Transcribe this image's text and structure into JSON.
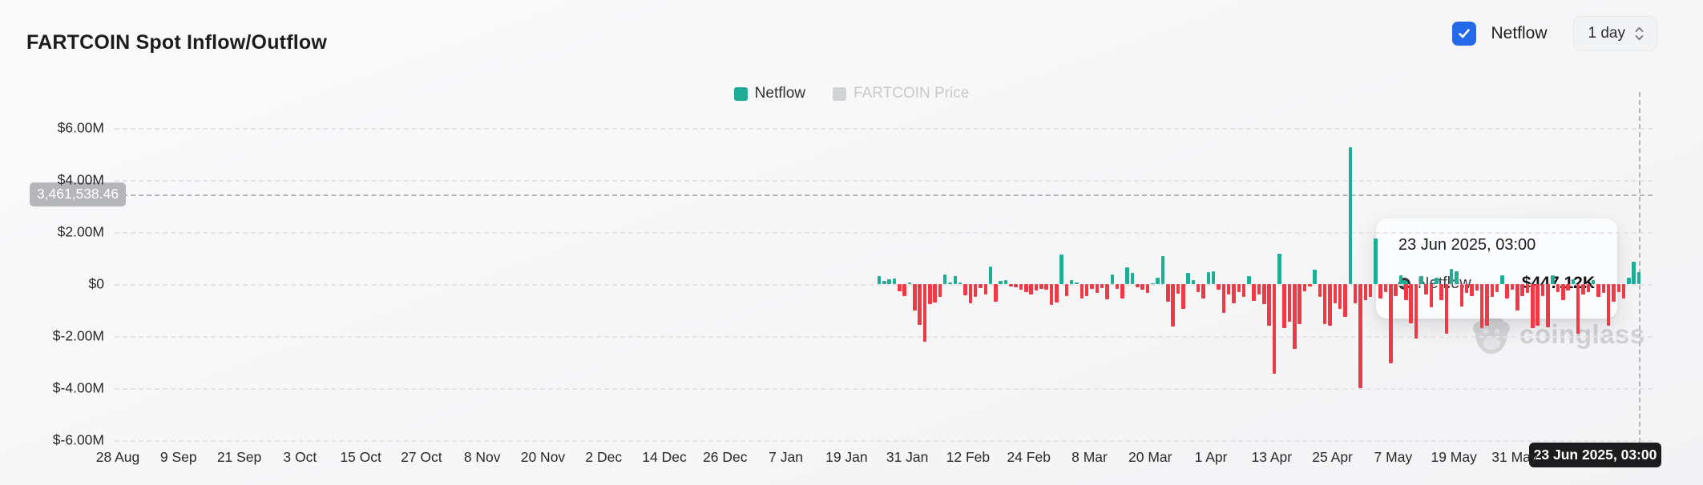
{
  "header": {
    "title": "FARTCOIN Spot Inflow/Outflow",
    "netflow_toggle": {
      "label": "Netflow",
      "checked": true
    },
    "interval_selector": {
      "value": "1 day"
    }
  },
  "legend": [
    {
      "label": "Netflow",
      "active": true
    },
    {
      "label": "FARTCOIN Price",
      "active": false
    }
  ],
  "colors": {
    "positive": "#21ac96",
    "negative": "#ee3a47",
    "accent_blue": "#2569eb",
    "legend_inactive_swatch": "#d2d3d6"
  },
  "crosshair": {
    "y_axis_label": "3,461,538.46",
    "x_axis_label": "23 Jun 2025, 03:00"
  },
  "tooltip": {
    "title": "23 Jun 2025, 03:00",
    "series": "Netflow",
    "value": "$447.12K"
  },
  "watermark": {
    "text": "coinglass"
  },
  "chart_data": {
    "type": "bar",
    "title": "FARTCOIN Spot Inflow/Outflow",
    "series_name": "Netflow",
    "unit": "USD millions",
    "frequency": "daily",
    "start_date": "24 Jan 2025",
    "end_date": "23 Jun 2025",
    "ylim": [
      -6,
      6
    ],
    "grid": true,
    "legend_position": "top-center",
    "y_ticks": [
      "$6.00M",
      "$4.00M",
      "$2.00M",
      "$0",
      "$-2.00M",
      "$-4.00M",
      "$-6.00M"
    ],
    "y_tick_values": [
      6,
      4,
      2,
      0,
      -2,
      -4,
      -6
    ],
    "x_tick_labels": [
      "28 Aug",
      "9 Sep",
      "21 Sep",
      "3 Oct",
      "15 Oct",
      "27 Oct",
      "8 Nov",
      "20 Nov",
      "2 Dec",
      "14 Dec",
      "26 Dec",
      "7 Jan",
      "19 Jan",
      "31 Jan",
      "12 Feb",
      "24 Feb",
      "8 Mar",
      "20 Mar",
      "1 Apr",
      "13 Apr",
      "25 Apr",
      "7 May",
      "19 May",
      "31 May"
    ],
    "hovered_point": {
      "date": "23 Jun 2025, 03:00",
      "value_label": "$447.12K",
      "value_m": 0.447
    },
    "crosshair_y_value_m": 3.46153846,
    "values": [
      0.31,
      0.13,
      0.2,
      0.23,
      -0.26,
      -0.46,
      0.05,
      -1.02,
      -1.57,
      -2.2,
      -0.77,
      -0.72,
      -0.48,
      0.36,
      0.05,
      0.3,
      0.06,
      -0.43,
      -0.75,
      -0.5,
      -0.15,
      -0.4,
      0.69,
      -0.69,
      0.13,
      0.15,
      -0.1,
      -0.13,
      -0.2,
      -0.3,
      -0.4,
      -0.23,
      -0.18,
      -0.2,
      -0.8,
      -0.7,
      1.14,
      -0.45,
      0.15,
      0.05,
      -0.55,
      -0.47,
      -0.17,
      -0.33,
      -0.15,
      -0.58,
      0.38,
      -0.17,
      -0.55,
      0.66,
      0.44,
      -0.12,
      -0.2,
      -0.33,
      0.04,
      0.26,
      1.08,
      -0.67,
      -1.63,
      -0.36,
      -0.95,
      0.42,
      0.15,
      -0.3,
      -0.55,
      0.45,
      0.5,
      -0.2,
      -1.1,
      -0.4,
      -0.75,
      -0.3,
      -0.5,
      0.3,
      -0.65,
      -0.4,
      -0.77,
      -1.6,
      -3.44,
      1.16,
      -1.7,
      -1.44,
      -2.5,
      -1.55,
      -0.26,
      -0.08,
      0.57,
      -0.5,
      -1.55,
      -1.6,
      -0.75,
      -0.95,
      -1.25,
      5.25,
      -0.75,
      -4.0,
      -0.6,
      -0.5,
      1.75,
      -0.55,
      -0.3,
      -3.05,
      -0.45,
      0.35,
      -0.6,
      -1.5,
      -2.1,
      0.3,
      -0.4,
      -0.9,
      0.25,
      -0.6,
      -1.9,
      0.6,
      0.5,
      -0.85,
      -0.35,
      -0.45,
      -0.25,
      -1.7,
      -1.6,
      -0.5,
      -0.3,
      0.35,
      -0.55,
      -0.2,
      -1.0,
      -0.45,
      -0.35,
      -1.7,
      -1.6,
      -0.45,
      -1.65,
      0.35,
      -0.3,
      -0.6,
      -0.25,
      0.2,
      -1.9,
      -0.4,
      -0.3,
      0.15,
      -0.5,
      -0.35,
      -1.6,
      -0.68,
      -0.3,
      -0.55,
      0.25,
      0.87,
      0.45
    ]
  }
}
